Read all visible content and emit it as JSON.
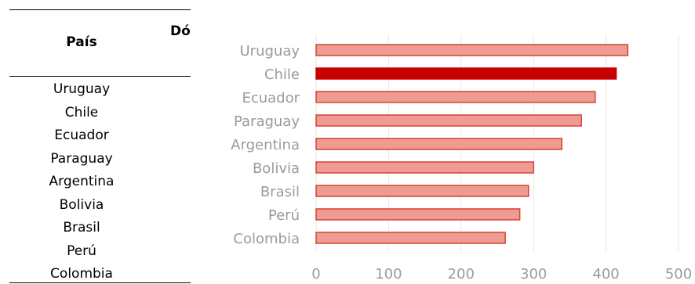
{
  "table": {
    "header_country": "País",
    "header_value": "Dó",
    "rows": [
      "Uruguay",
      "Chile",
      "Ecuador",
      "Paraguay",
      "Argentina",
      "Bolivia",
      "Brasil",
      "Perú",
      "Colombia"
    ]
  },
  "chart_data": {
    "type": "bar",
    "orientation": "horizontal",
    "categories": [
      "Uruguay",
      "Chile",
      "Ecuador",
      "Paraguay",
      "Argentina",
      "Bolivia",
      "Brasil",
      "Perú",
      "Colombia"
    ],
    "values": [
      430,
      414,
      385,
      366,
      339,
      300,
      293,
      281,
      261
    ],
    "highlight": "Chile",
    "xlim": [
      0,
      500
    ],
    "xticks": [
      0,
      100,
      200,
      300,
      400,
      500
    ],
    "grid": true,
    "colors": {
      "bar": "#ec9c93",
      "bar_edge": "#d9412f",
      "highlight": "#c80000",
      "grid": "#e6e6e6"
    }
  }
}
